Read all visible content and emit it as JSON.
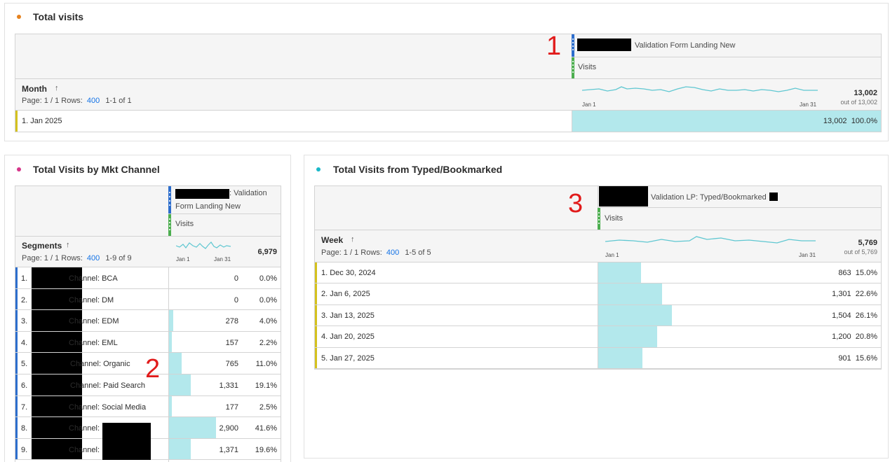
{
  "colors": {
    "accent_link": "#1473e6",
    "bar": "#b3e8ec",
    "dot_orange": "#e6821e",
    "dot_pink": "#d6368a",
    "dot_teal": "#1ab8c9",
    "row_stripe_yellow": "#d4c21e",
    "row_stripe_blue": "#2d6ecd",
    "annotation": "#e11b1b"
  },
  "icons": {
    "sort": "arrow-up-icon",
    "drag": "grip-icon"
  },
  "panel1": {
    "title": "Total visits",
    "segment_label": "Validation Form Landing New",
    "metric_label": "Visits",
    "dim_name": "Month",
    "sort_arrow": "↑",
    "page_text": "Page: 1 / 1 Rows:",
    "rows_value": "400",
    "range_text": "1-1 of 1",
    "spark_start": "Jan 1",
    "spark_end": "Jan 31",
    "total": "13,002",
    "out_of": "out of 13,002",
    "annotation": "1",
    "rows": [
      {
        "label": "1.  Jan 2025",
        "value": "13,002",
        "pct": "100.0%",
        "fraction": 1.0
      }
    ]
  },
  "panel2": {
    "title": "Total Visits by Mkt Channel",
    "segment_label_1": ": Validation",
    "segment_label_2": "Form Landing New",
    "metric_label": "Visits",
    "dim_name": "Segments",
    "sort_arrow": "↑",
    "page_text": "Page: 1 / 1 Rows:",
    "rows_value": "400",
    "range_text": "1-9 of 9",
    "spark_start": "Jan 1",
    "spark_end": "Jan 31",
    "total": "6,979",
    "annotation": "2",
    "rows": [
      {
        "num": "1.",
        "label": "Channel: BCA",
        "value": "0",
        "pct": "0.0%",
        "fraction": 0.0
      },
      {
        "num": "2.",
        "label": "Channel: DM",
        "value": "0",
        "pct": "0.0%",
        "fraction": 0.0
      },
      {
        "num": "3.",
        "label": "Channel: EDM",
        "value": "278",
        "pct": "4.0%",
        "fraction": 0.04
      },
      {
        "num": "4.",
        "label": "Channel: EML",
        "value": "157",
        "pct": "2.2%",
        "fraction": 0.022
      },
      {
        "num": "5.",
        "label": "Channel: Organic",
        "value": "765",
        "pct": "11.0%",
        "fraction": 0.11
      },
      {
        "num": "6.",
        "label": "Channel: Paid Search",
        "value": "1,331",
        "pct": "19.1%",
        "fraction": 0.191
      },
      {
        "num": "7.",
        "label": "Channel: Social Media",
        "value": "177",
        "pct": "2.5%",
        "fraction": 0.025
      },
      {
        "num": "8.",
        "label": "Channel:",
        "value": "2,900",
        "pct": "41.6%",
        "fraction": 0.416
      },
      {
        "num": "9.",
        "label": "Channel:",
        "value": "1,371",
        "pct": "19.6%",
        "fraction": 0.196
      }
    ]
  },
  "panel3": {
    "title": "Total Visits from Typed/Bookmarked",
    "segment_label": "Validation LP: Typed/Bookmarked",
    "metric_label": "Visits",
    "dim_name": "Week",
    "sort_arrow": "↑",
    "page_text": "Page: 1 / 1 Rows:",
    "rows_value": "400",
    "range_text": "1-5 of 5",
    "spark_start": "Jan 1",
    "spark_end": "Jan 31",
    "total": "5,769",
    "out_of": "out of 5,769",
    "annotation": "3",
    "rows": [
      {
        "label": "1.  Dec 30, 2024",
        "value": "863",
        "pct": "15.0%",
        "fraction": 0.15
      },
      {
        "label": "2.  Jan 6, 2025",
        "value": "1,301",
        "pct": "22.6%",
        "fraction": 0.226
      },
      {
        "label": "3.  Jan 13, 2025",
        "value": "1,504",
        "pct": "26.1%",
        "fraction": 0.261
      },
      {
        "label": "4.  Jan 20, 2025",
        "value": "1,200",
        "pct": "20.8%",
        "fraction": 0.208
      },
      {
        "label": "5.  Jan 27, 2025",
        "value": "901",
        "pct": "15.6%",
        "fraction": 0.156
      }
    ]
  }
}
